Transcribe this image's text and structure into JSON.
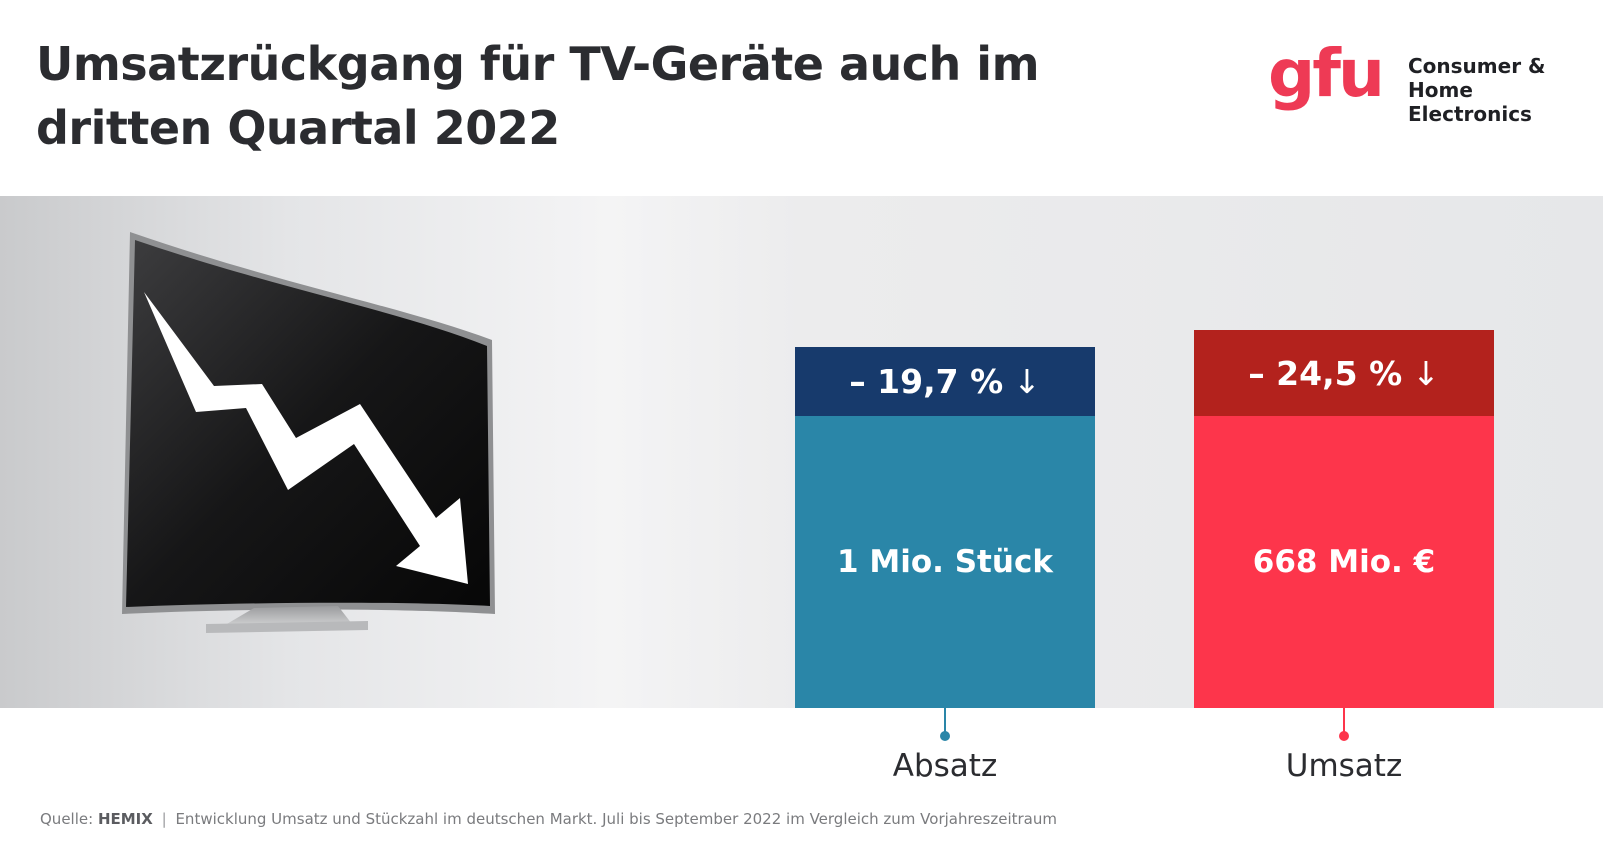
{
  "header": {
    "title_line1": "Umsatzrückgang für TV-Geräte auch im",
    "title_line2": "dritten Quartal 2022"
  },
  "logo": {
    "brand": "gfu",
    "sub_line1": "Consumer &",
    "sub_line2": "Home Electronics",
    "color": "#ee3a55"
  },
  "chart_data": {
    "type": "bar",
    "categories": [
      "Absatz",
      "Umsatz"
    ],
    "series": [
      {
        "values": [
          "1 Mio. Stück",
          "668 Mio. €"
        ],
        "changes": [
          "– 19,7 %",
          "– 24,5 %"
        ]
      }
    ],
    "values_numeric": [
      1,
      668
    ],
    "changes_numeric": [
      -19.7,
      -24.5
    ],
    "change_direction": "down",
    "colors": {
      "absatz_body": "#2a86a8",
      "absatz_head": "#173a6c",
      "umsatz_body": "#fd354b",
      "umsatz_head": "#b3221d"
    }
  },
  "icons": [
    "trend-down-arrow-icon",
    "tv-image",
    "down-arrow-icon"
  ],
  "footer": {
    "source_prefix": "Quelle:",
    "source_brand": "HEMIX",
    "source_text": "Entwicklung Umsatz und Stückzahl im deutschen Markt. Juli bis September 2022 im Vergleich zum Vorjahreszeitraum"
  }
}
